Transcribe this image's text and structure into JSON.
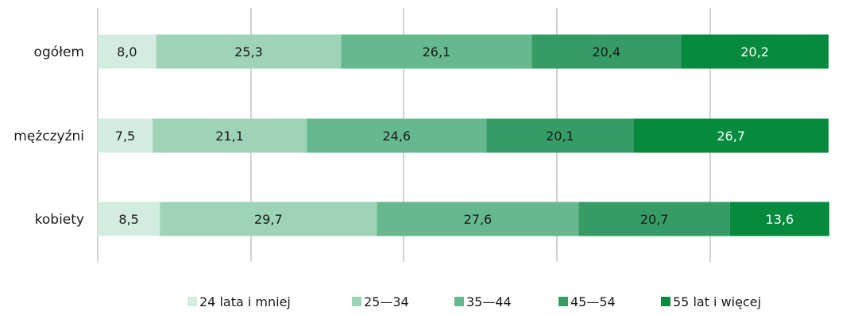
{
  "chart_data": {
    "type": "bar",
    "orientation": "horizontal",
    "stacked": true,
    "title": "",
    "xlabel": "",
    "ylabel": "",
    "xlim": [
      0,
      100
    ],
    "grid": true,
    "legend_position": "bottom",
    "categories": [
      "ogółem",
      "mężczyźni",
      "kobiety"
    ],
    "series": [
      {
        "name": "24 lata i mniej",
        "color": "#d3ece0",
        "label_color": "#1a1a1a",
        "values": [
          8.0,
          7.5,
          8.5
        ],
        "labels": [
          "8,0",
          "7,5",
          "8,5"
        ]
      },
      {
        "name": "25—34",
        "color": "#9fd3b7",
        "label_color": "#1a1a1a",
        "values": [
          25.3,
          21.1,
          29.7
        ],
        "labels": [
          "25,3",
          "21,1",
          "29,7"
        ]
      },
      {
        "name": "35—44",
        "color": "#66b88e",
        "label_color": "#1a1a1a",
        "values": [
          26.1,
          24.6,
          27.6
        ],
        "labels": [
          "26,1",
          "24,6",
          "27,6"
        ]
      },
      {
        "name": "45—54",
        "color": "#369c66",
        "label_color": "#1a1a1a",
        "values": [
          20.4,
          20.1,
          20.7
        ],
        "labels": [
          "20,4",
          "20,1",
          "20,7"
        ]
      },
      {
        "name": "55 lat i więcej",
        "color": "#068a3e",
        "label_color": "#ffffff",
        "values": [
          20.2,
          26.7,
          13.6
        ],
        "labels": [
          "20,2",
          "26,7",
          "13,6"
        ]
      }
    ]
  }
}
